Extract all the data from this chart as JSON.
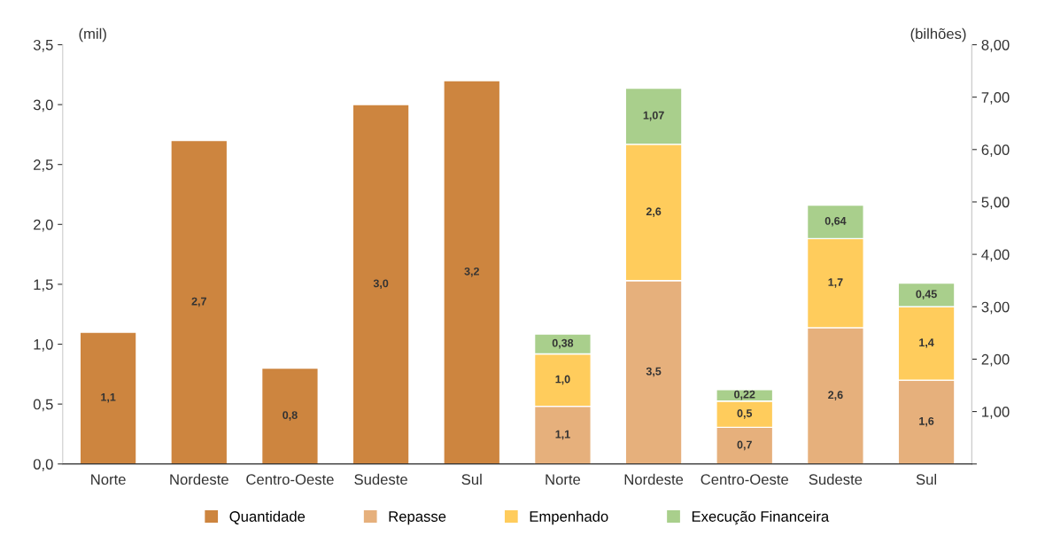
{
  "chart_data": {
    "type": "bar",
    "stacked": true,
    "ylabel": "(mil)",
    "y2label": "(bilhões)",
    "categories": [
      "Norte",
      "Nordeste",
      "Centro-Oeste",
      "Sudeste",
      "Sul",
      "Norte",
      "Nordeste",
      "Centro-Oeste",
      "Sudeste",
      "Sul"
    ],
    "series": [
      {
        "name": "Quantidade",
        "color": "#cd853f",
        "values": [
          1.1,
          2.7,
          0.8,
          3.0,
          3.2,
          null,
          null,
          null,
          null,
          null
        ],
        "value_labels": [
          "1,1",
          "2,7",
          "0,8",
          "3,0",
          "3,2",
          null,
          null,
          null,
          null,
          null
        ]
      },
      {
        "name": "Repasse",
        "color": "#e6b07c",
        "axis": "y2",
        "values": [
          null,
          null,
          null,
          null,
          null,
          1.1,
          3.5,
          0.7,
          2.6,
          1.6
        ],
        "value_labels": [
          null,
          null,
          null,
          null,
          null,
          "1,1",
          "3,5",
          "0,7",
          "2,6",
          "1,6"
        ]
      },
      {
        "name": "Empenhado",
        "color": "#ffcc5c",
        "axis": "y2",
        "values": [
          null,
          null,
          null,
          null,
          null,
          1.0,
          2.6,
          0.5,
          1.7,
          1.4
        ],
        "value_labels": [
          null,
          null,
          null,
          null,
          null,
          "1,0",
          "2,6",
          "0,5",
          "1,7",
          "1,4"
        ]
      },
      {
        "name": "Execução Financeira",
        "color": "#a9cf8c",
        "axis": "y2",
        "values": [
          null,
          null,
          null,
          null,
          null,
          0.38,
          1.07,
          0.22,
          0.64,
          0.45
        ],
        "value_labels": [
          null,
          null,
          null,
          null,
          null,
          "0,38",
          "1,07",
          "0,22",
          "0,64",
          "0,45"
        ]
      }
    ],
    "ylim": [
      0,
      3.5
    ],
    "yticks": [
      {
        "value": 0,
        "label": "0,0"
      },
      {
        "value": 0.5,
        "label": "0,5"
      },
      {
        "value": 1.0,
        "label": "1,0"
      },
      {
        "value": 1.5,
        "label": "1,5"
      },
      {
        "value": 2.0,
        "label": "2,0"
      },
      {
        "value": 2.5,
        "label": "2,5"
      },
      {
        "value": 3.0,
        "label": "3,0"
      },
      {
        "value": 3.5,
        "label": "3,5"
      }
    ],
    "y2lim": [
      0,
      8
    ],
    "y2ticks": [
      {
        "value": 0,
        "label": null
      },
      {
        "value": 1,
        "label": "1,00"
      },
      {
        "value": 2,
        "label": "2,00"
      },
      {
        "value": 3,
        "label": "3,00"
      },
      {
        "value": 4,
        "label": "4,00"
      },
      {
        "value": 5,
        "label": "5,00"
      },
      {
        "value": 6,
        "label": "6,00"
      },
      {
        "value": 7,
        "label": "7,00"
      },
      {
        "value": 8,
        "label": "8,00"
      }
    ],
    "grid": false,
    "legend": "bottom"
  }
}
